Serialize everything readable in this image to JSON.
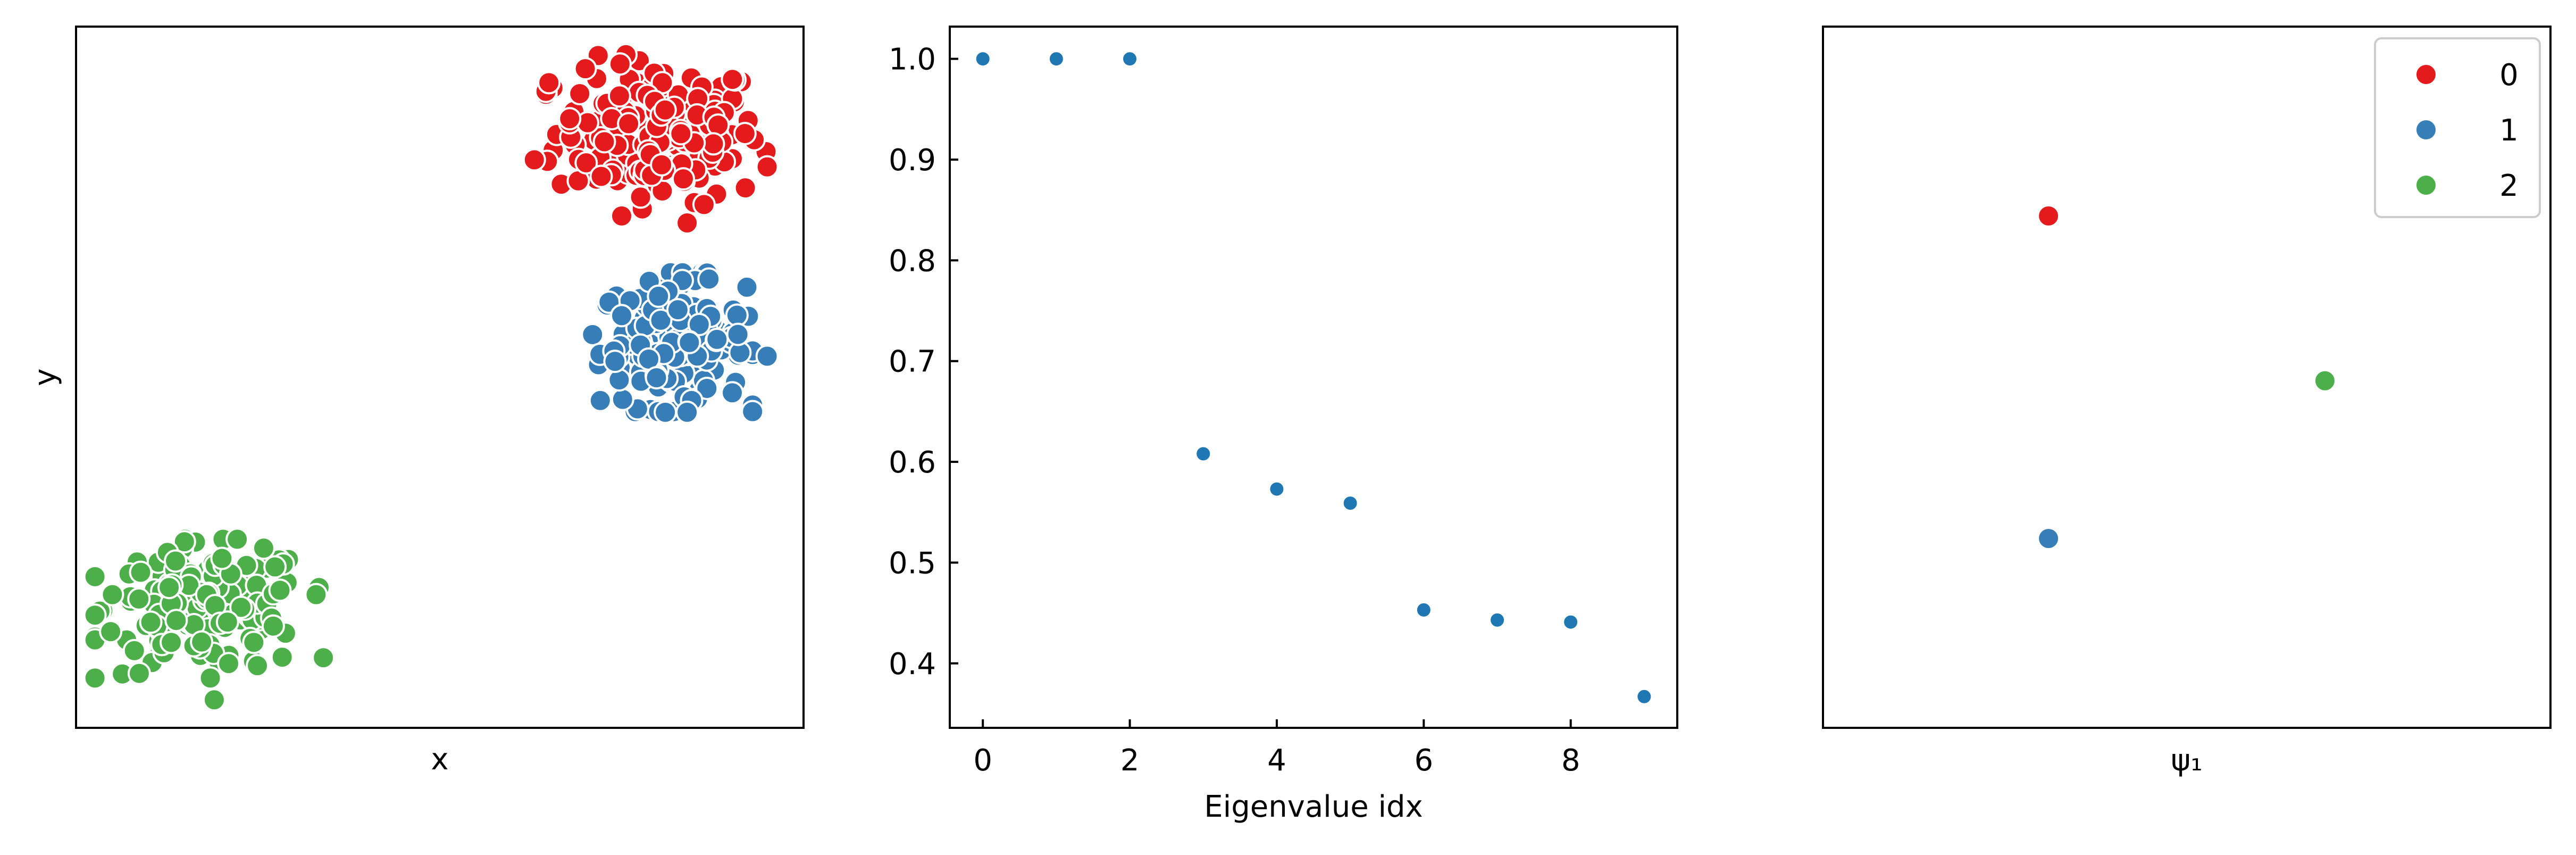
{
  "colors": {
    "class0": "#e41a1c",
    "class1": "#377eb8",
    "class2": "#4daf4a",
    "eig": "#1f77b4"
  },
  "chart_data": [
    {
      "type": "scatter",
      "title": "",
      "xlabel": "x",
      "ylabel": "y",
      "xlim": [
        0,
        10
      ],
      "ylim": [
        0,
        10
      ],
      "show_ticks": false,
      "clusters": [
        {
          "name": "0",
          "center": [
            8.0,
            8.5
          ],
          "spread": [
            0.7,
            0.5
          ],
          "count": 180,
          "extra": [
            [
              6.3,
              8.1
            ],
            [
              7.5,
              7.3
            ],
            [
              8.4,
              7.2
            ],
            [
              9.5,
              8.0
            ],
            [
              9.2,
              7.7
            ],
            [
              6.5,
              9.2
            ],
            [
              7.0,
              9.4
            ]
          ]
        },
        {
          "name": "1",
          "center": [
            8.2,
            5.5
          ],
          "spread": [
            0.5,
            0.45
          ],
          "count": 170,
          "extra": [
            [
              8.7,
              6.4
            ],
            [
              8.1,
              4.5
            ],
            [
              8.4,
              4.5
            ],
            [
              9.5,
              5.3
            ]
          ]
        },
        {
          "name": "2",
          "center": [
            1.8,
            1.7
          ],
          "spread": [
            0.7,
            0.45
          ],
          "count": 170,
          "extra": [
            [
              1.9,
              0.4
            ],
            [
              3.4,
              1.0
            ],
            [
              3.3,
              1.9
            ],
            [
              0.5,
              1.9
            ]
          ]
        }
      ]
    },
    {
      "type": "scatter",
      "title": "",
      "xlabel": "Eigenvalue idx",
      "ylabel": "",
      "xlim": [
        -0.45,
        9.45
      ],
      "ylim": [
        0.336,
        1.032
      ],
      "xticks": [
        "0",
        "2",
        "4",
        "6",
        "8"
      ],
      "yticks": [
        "0.4",
        "0.5",
        "0.6",
        "0.7",
        "0.8",
        "0.9",
        "1.0"
      ],
      "x": [
        0,
        1,
        2,
        3,
        4,
        5,
        6,
        7,
        8,
        9
      ],
      "y": [
        1.0,
        1.0,
        1.0,
        0.608,
        0.573,
        0.559,
        0.453,
        0.443,
        0.441,
        0.367
      ]
    },
    {
      "type": "scatter",
      "title": "",
      "xlabel": "ψ₁",
      "ylabel": "",
      "xlim": [
        0,
        10
      ],
      "ylim": [
        0,
        10
      ],
      "show_ticks": false,
      "legend": {
        "placement": "top-right",
        "entries": [
          "0",
          "1",
          "2"
        ]
      },
      "points": [
        {
          "label": "0",
          "x": 3.1,
          "y": 7.3
        },
        {
          "label": "1",
          "x": 3.1,
          "y": 2.7
        },
        {
          "label": "2",
          "x": 6.9,
          "y": 4.95
        }
      ]
    }
  ]
}
